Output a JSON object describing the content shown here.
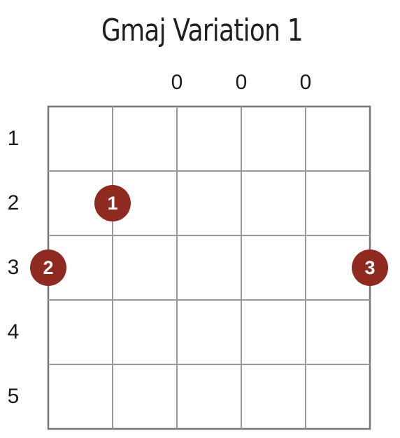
{
  "title": "Gmaj Variation 1",
  "strings": 6,
  "frets": 5,
  "string_markers": [
    "",
    "",
    "0",
    "0",
    "0",
    ""
  ],
  "fret_numbers": [
    "1",
    "2",
    "3",
    "4",
    "5"
  ],
  "fingerings": [
    {
      "string": 2,
      "fret": 2,
      "finger": "1"
    },
    {
      "string": 1,
      "fret": 3,
      "finger": "2"
    },
    {
      "string": 6,
      "fret": 3,
      "finger": "3"
    }
  ],
  "colors": {
    "grid": "#999999",
    "dot": "#8e2a1f",
    "dot_text": "#ffffff",
    "text": "#1a1a1a"
  }
}
